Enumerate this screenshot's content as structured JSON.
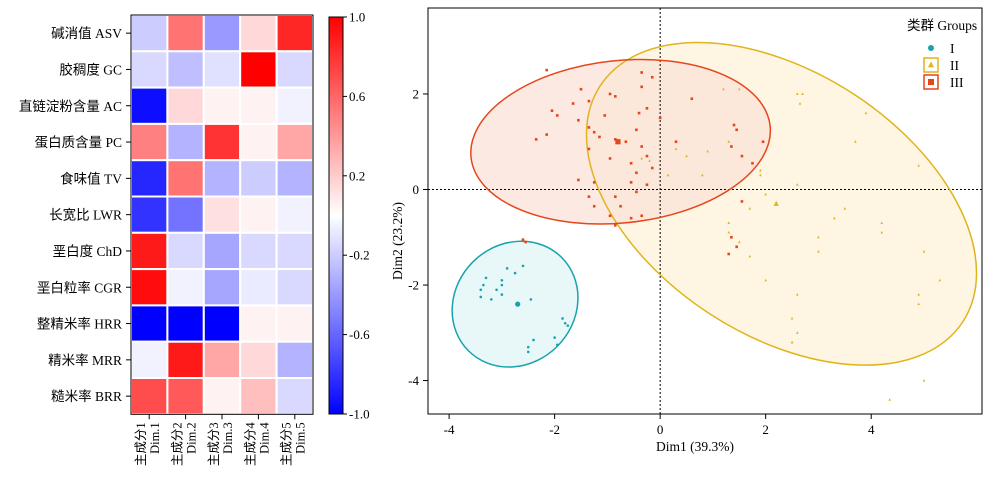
{
  "chart_data": [
    {
      "type": "heatmap",
      "rows": [
        "碱消值 ASV",
        "胶稠度 GC",
        "直链淀粉含量 AC",
        "蛋白质含量 PC",
        "食味值 TV",
        "长宽比 LWR",
        "垩白度 ChD",
        "垩白粒率 CGR",
        "整精米率 HRR",
        "精米率 MRR",
        "糙米率 BRR"
      ],
      "columns": [
        {
          "cn": "主成分1",
          "en": "Dim.1"
        },
        {
          "cn": "主成分2",
          "en": "Dim.2"
        },
        {
          "cn": "主成分3",
          "en": "Dim.3"
        },
        {
          "cn": "主成分4",
          "en": "Dim.4"
        },
        {
          "cn": "主成分5",
          "en": "Dim.5"
        }
      ],
      "values": [
        [
          -0.2,
          0.55,
          -0.4,
          0.15,
          0.85
        ],
        [
          -0.15,
          -0.25,
          -0.12,
          1.0,
          -0.15
        ],
        [
          -0.95,
          0.15,
          0.05,
          0.05,
          -0.05
        ],
        [
          0.5,
          -0.3,
          0.8,
          0.05,
          0.35
        ],
        [
          -0.85,
          0.55,
          -0.3,
          -0.2,
          -0.3
        ],
        [
          -0.8,
          -0.55,
          0.12,
          0.05,
          -0.05
        ],
        [
          0.9,
          -0.15,
          -0.35,
          -0.15,
          -0.15
        ],
        [
          0.95,
          -0.05,
          -0.35,
          -0.08,
          -0.15
        ],
        [
          -1.0,
          -1.0,
          -1.0,
          0.05,
          0.05
        ],
        [
          -0.05,
          0.9,
          0.35,
          0.15,
          -0.3
        ],
        [
          0.7,
          0.65,
          0.05,
          0.25,
          -0.15
        ]
      ],
      "colorbar": {
        "range": [
          -1.0,
          1.0
        ],
        "ticks": [
          "1.0",
          "0.6",
          "0.2",
          "-0.2",
          "-0.6",
          "-1.0"
        ],
        "tick_values": [
          1.0,
          0.6,
          0.2,
          -0.2,
          -0.6,
          -1.0
        ],
        "colors": {
          "negative": "#0000ff",
          "zero": "#ffffff",
          "positive": "#ff0000"
        }
      }
    },
    {
      "type": "scatter",
      "xlabel": "Dim1 (39.3%)",
      "ylabel": "Dim2 (23.2%)",
      "xlim": [
        -4.4,
        6.1
      ],
      "ylim": [
        -4.7,
        3.8
      ],
      "xticks": [
        -4,
        -2,
        0,
        2,
        4
      ],
      "yticks": [
        2,
        0,
        -2,
        -4
      ],
      "reference_lines": {
        "x": 0,
        "y": 0,
        "style": "dotted"
      },
      "legend": {
        "title": "类群 Groups",
        "position": "top-right"
      },
      "series": [
        {
          "name": "I",
          "marker": "circle",
          "color": "#17a3ae",
          "ellipse": {
            "cx": -2.75,
            "cy": -2.4,
            "rx": 1.25,
            "ry": 1.25,
            "angle": -45,
            "fill": "#e0f4f5"
          },
          "centroid": [
            -2.7,
            -2.4
          ],
          "points": [
            [
              -2.6,
              -1.6
            ],
            [
              -2.9,
              -1.65
            ],
            [
              -2.75,
              -1.75
            ],
            [
              -3.0,
              -1.9
            ],
            [
              -3.3,
              -1.85
            ],
            [
              -3.0,
              -2.0
            ],
            [
              -3.35,
              -2.0
            ],
            [
              -3.1,
              -2.1
            ],
            [
              -3.0,
              -2.2
            ],
            [
              -3.4,
              -2.25
            ],
            [
              -3.2,
              -2.3
            ],
            [
              -3.4,
              -2.1
            ],
            [
              -2.4,
              -3.15
            ],
            [
              -2.5,
              -3.3
            ],
            [
              -2.0,
              -3.1
            ],
            [
              -1.95,
              -3.25
            ],
            [
              -1.8,
              -2.8
            ],
            [
              -1.85,
              -2.7
            ],
            [
              -1.75,
              -2.85
            ],
            [
              -2.5,
              -3.4
            ],
            [
              -2.45,
              -2.3
            ]
          ]
        },
        {
          "name": "II",
          "marker": "triangle",
          "color": "#e0b41a",
          "ellipse": {
            "cx": 2.3,
            "cy": -0.3,
            "rx": 4.1,
            "ry": 2.75,
            "angle": 33,
            "fill": "#fdf3d9"
          },
          "centroid": [
            2.2,
            -0.3
          ],
          "points": [
            [
              1.2,
              2.1
            ],
            [
              1.5,
              2.1
            ],
            [
              2.6,
              2.0
            ],
            [
              2.7,
              2.0
            ],
            [
              2.65,
              1.8
            ],
            [
              3.9,
              1.6
            ],
            [
              3.7,
              1.0
            ],
            [
              4.9,
              0.5
            ],
            [
              1.3,
              1.0
            ],
            [
              0.9,
              0.8
            ],
            [
              0.8,
              0.3
            ],
            [
              0.5,
              0.7
            ],
            [
              1.9,
              0.4
            ],
            [
              1.9,
              0.3
            ],
            [
              2.0,
              -0.1
            ],
            [
              2.6,
              0.1
            ],
            [
              1.7,
              -0.4
            ],
            [
              1.3,
              -0.7
            ],
            [
              1.3,
              -0.9
            ],
            [
              1.5,
              -1.1
            ],
            [
              3.0,
              -1.3
            ],
            [
              4.2,
              -0.7
            ],
            [
              4.2,
              -0.9
            ],
            [
              3.5,
              -0.4
            ],
            [
              3.3,
              -0.6
            ],
            [
              5.0,
              -1.3
            ],
            [
              5.3,
              -1.9
            ],
            [
              4.9,
              -2.2
            ],
            [
              4.9,
              -2.4
            ],
            [
              2.6,
              -2.2
            ],
            [
              2.0,
              -1.9
            ],
            [
              1.7,
              -1.4
            ],
            [
              2.5,
              -2.7
            ],
            [
              2.6,
              -3.0
            ],
            [
              2.5,
              -3.2
            ],
            [
              2.5,
              -3.2
            ],
            [
              5.0,
              -4.0
            ],
            [
              4.35,
              -4.4
            ],
            [
              3.0,
              -1.0
            ],
            [
              -0.35,
              0.65
            ],
            [
              -0.2,
              0.6
            ],
            [
              0.3,
              0.85
            ],
            [
              0.15,
              0.3
            ]
          ]
        },
        {
          "name": "III",
          "marker": "square",
          "color": "#e5461c",
          "ellipse": {
            "cx": -0.75,
            "cy": 1.0,
            "rx": 2.85,
            "ry": 1.7,
            "angle": -6,
            "fill": "#fbe1d8"
          },
          "centroid": [
            -0.8,
            1.0
          ],
          "points": [
            [
              -2.15,
              2.5
            ],
            [
              -0.35,
              2.45
            ],
            [
              -0.15,
              2.35
            ],
            [
              -0.35,
              2.15
            ],
            [
              -1.5,
              2.1
            ],
            [
              -0.95,
              2.0
            ],
            [
              -1.35,
              1.85
            ],
            [
              -0.85,
              1.95
            ],
            [
              -0.25,
              1.7
            ],
            [
              -2.05,
              1.65
            ],
            [
              -1.65,
              1.8
            ],
            [
              -0.4,
              1.6
            ],
            [
              -1.55,
              1.45
            ],
            [
              -1.05,
              1.55
            ],
            [
              0.0,
              1.5
            ],
            [
              0.6,
              1.9
            ],
            [
              -1.35,
              1.3
            ],
            [
              -1.25,
              1.2
            ],
            [
              -1.15,
              1.1
            ],
            [
              -0.85,
              1.05
            ],
            [
              -0.45,
              1.25
            ],
            [
              -2.15,
              1.15
            ],
            [
              -2.35,
              1.05
            ],
            [
              -0.65,
              1.0
            ],
            [
              -0.35,
              0.9
            ],
            [
              -0.25,
              0.7
            ],
            [
              0.3,
              1.0
            ],
            [
              1.4,
              1.35
            ],
            [
              1.45,
              1.25
            ],
            [
              1.35,
              0.9
            ],
            [
              -1.35,
              0.85
            ],
            [
              -0.95,
              0.65
            ],
            [
              -0.55,
              0.55
            ],
            [
              -0.15,
              0.45
            ],
            [
              -1.55,
              0.2
            ],
            [
              -1.25,
              0.15
            ],
            [
              -0.55,
              0.15
            ],
            [
              -0.25,
              0.1
            ],
            [
              -0.45,
              -0.05
            ],
            [
              -0.85,
              -0.15
            ],
            [
              -1.25,
              -0.35
            ],
            [
              -0.75,
              -0.35
            ],
            [
              -0.35,
              -0.55
            ],
            [
              -0.95,
              -0.55
            ],
            [
              -0.55,
              -0.6
            ],
            [
              -0.85,
              -0.75
            ],
            [
              -2.6,
              -1.05
            ],
            [
              -2.55,
              -1.1
            ],
            [
              1.75,
              0.55
            ],
            [
              1.55,
              -0.25
            ],
            [
              1.45,
              -1.2
            ],
            [
              1.3,
              -1.35
            ],
            [
              1.35,
              -1.0
            ],
            [
              1.95,
              1.0
            ],
            [
              1.55,
              0.7
            ],
            [
              -0.45,
              0.35
            ],
            [
              -1.35,
              -0.15
            ],
            [
              -1.95,
              1.55
            ]
          ]
        }
      ]
    }
  ]
}
